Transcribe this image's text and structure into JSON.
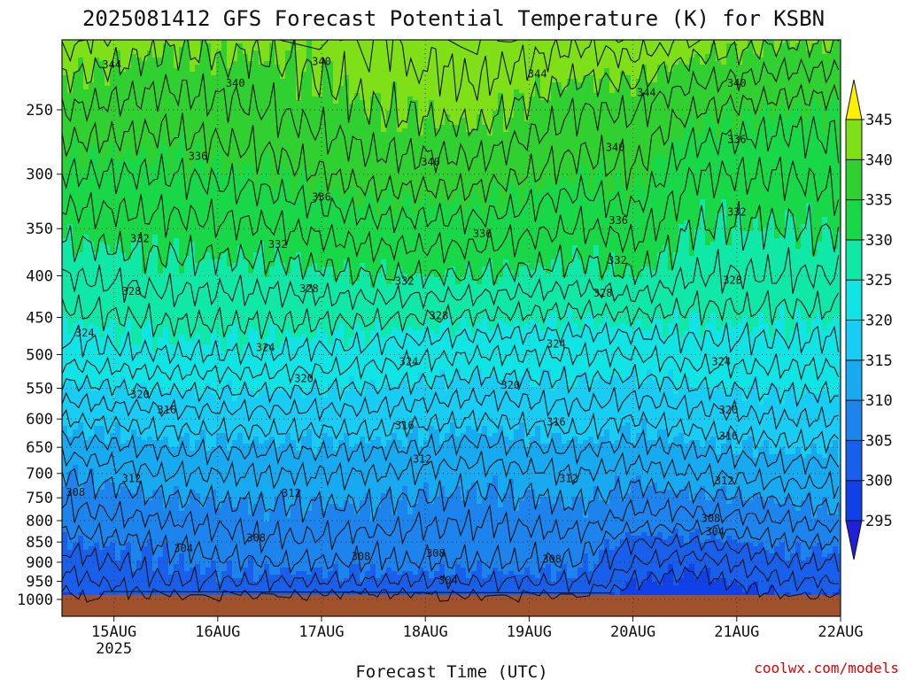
{
  "chart_data": {
    "type": "heatmap",
    "title": "2025081412 GFS Forecast Potential Temperature (K) for KSBN",
    "xlabel": "Forecast Time (UTC)",
    "ylabel": "",
    "credit": "coolwx.com/models",
    "x_ticks": [
      {
        "label": "15AUG",
        "sublabel": "2025",
        "day": 15
      },
      {
        "label": "16AUG",
        "sublabel": "",
        "day": 16
      },
      {
        "label": "17AUG",
        "sublabel": "",
        "day": 17
      },
      {
        "label": "18AUG",
        "sublabel": "",
        "day": 18
      },
      {
        "label": "19AUG",
        "sublabel": "",
        "day": 19
      },
      {
        "label": "20AUG",
        "sublabel": "",
        "day": 20
      },
      {
        "label": "21AUG",
        "sublabel": "",
        "day": 21
      },
      {
        "label": "22AUG",
        "sublabel": "",
        "day": 22
      }
    ],
    "xlim": [
      14.5,
      22.0
    ],
    "y_axis_scale": "log-pressure",
    "y_ticks_hpa": [
      250,
      300,
      350,
      400,
      450,
      500,
      550,
      600,
      650,
      700,
      750,
      800,
      850,
      900,
      950,
      1000
    ],
    "ylim_hpa": [
      1000,
      200
    ],
    "grid": true,
    "colorbar": {
      "levels": [
        295,
        300,
        305,
        310,
        315,
        320,
        325,
        330,
        335,
        340,
        345
      ],
      "colors": [
        "#2020d8",
        "#1040e8",
        "#1860ec",
        "#1c84ec",
        "#18aaf0",
        "#18ccf4",
        "#10e4e4",
        "#10e8a8",
        "#18d848",
        "#30d030",
        "#80e018",
        "#fff000"
      ],
      "extend": "both"
    },
    "surface_color": "#a0522d",
    "contour_interval": 2,
    "contour_levels": [
      300,
      302,
      304,
      306,
      308,
      310,
      312,
      314,
      316,
      318,
      320,
      322,
      324,
      326,
      328,
      330,
      332,
      334,
      336,
      338,
      340,
      342,
      344,
      346
    ],
    "theta_profiles": [
      {
        "time_day": 14.5,
        "pressure_hpa": [
          1000,
          950,
          900,
          850,
          800,
          700,
          600,
          500,
          400,
          300,
          250,
          200
        ],
        "theta_k": [
          299,
          301,
          303,
          305,
          307,
          310,
          316,
          323,
          328,
          334,
          338,
          343
        ]
      },
      {
        "time_day": 15.5,
        "pressure_hpa": [
          1000,
          950,
          900,
          850,
          800,
          700,
          600,
          500,
          400,
          300,
          250,
          200
        ],
        "theta_k": [
          302,
          304,
          305,
          306,
          308,
          312,
          317,
          324,
          329,
          334,
          337,
          341
        ]
      },
      {
        "time_day": 16.5,
        "pressure_hpa": [
          1000,
          950,
          900,
          850,
          800,
          700,
          600,
          500,
          400,
          300,
          250,
          200
        ],
        "theta_k": [
          302,
          304,
          306,
          308,
          309,
          312,
          317,
          324,
          329,
          335,
          338,
          341
        ]
      },
      {
        "time_day": 17.5,
        "pressure_hpa": [
          1000,
          950,
          900,
          850,
          800,
          700,
          600,
          500,
          400,
          300,
          250,
          200
        ],
        "theta_k": [
          301,
          304,
          306,
          307,
          309,
          312,
          317,
          323,
          330,
          337,
          340,
          342
        ]
      },
      {
        "time_day": 18.5,
        "pressure_hpa": [
          1000,
          950,
          900,
          850,
          800,
          700,
          600,
          500,
          400,
          300,
          250,
          200
        ],
        "theta_k": [
          302,
          304,
          306,
          307,
          308,
          311,
          316,
          322,
          330,
          337,
          341,
          344
        ]
      },
      {
        "time_day": 19.5,
        "pressure_hpa": [
          1000,
          950,
          900,
          850,
          800,
          700,
          600,
          500,
          400,
          300,
          250,
          200
        ],
        "theta_k": [
          302,
          304,
          306,
          307,
          309,
          312,
          317,
          322,
          329,
          335,
          338,
          343
        ]
      },
      {
        "time_day": 20.0,
        "pressure_hpa": [
          1000,
          950,
          900,
          850,
          800,
          700,
          600,
          500,
          400,
          300,
          250,
          200
        ],
        "theta_k": [
          298,
          300,
          302,
          304,
          307,
          311,
          316,
          322,
          330,
          336,
          338,
          344
        ]
      },
      {
        "time_day": 20.6,
        "pressure_hpa": [
          1000,
          950,
          900,
          850,
          800,
          700,
          600,
          500,
          400,
          300,
          250,
          200
        ],
        "theta_k": [
          297,
          299,
          301,
          304,
          307,
          312,
          317,
          323,
          328,
          332,
          336,
          342
        ]
      },
      {
        "time_day": 21.5,
        "pressure_hpa": [
          1000,
          950,
          900,
          850,
          800,
          700,
          600,
          500,
          400,
          300,
          250,
          200
        ],
        "theta_k": [
          300,
          302,
          304,
          306,
          308,
          313,
          318,
          323,
          328,
          332,
          335,
          341
        ]
      },
      {
        "time_day": 22.0,
        "pressure_hpa": [
          1000,
          950,
          900,
          850,
          800,
          700,
          600,
          500,
          400,
          300,
          250,
          200
        ],
        "theta_k": [
          299,
          302,
          304,
          306,
          309,
          313,
          318,
          323,
          328,
          333,
          335,
          341
        ]
      }
    ],
    "contour_labels": [
      {
        "text": "344",
        "time_day": 14.98,
        "pressure_hpa": 220
      },
      {
        "text": "340",
        "time_day": 16.17,
        "pressure_hpa": 232
      },
      {
        "text": "340",
        "time_day": 17.0,
        "pressure_hpa": 218
      },
      {
        "text": "344",
        "time_day": 19.08,
        "pressure_hpa": 226
      },
      {
        "text": "344",
        "time_day": 20.13,
        "pressure_hpa": 238
      },
      {
        "text": "340",
        "time_day": 21.0,
        "pressure_hpa": 232
      },
      {
        "text": "336",
        "time_day": 15.81,
        "pressure_hpa": 285
      },
      {
        "text": "340",
        "time_day": 18.05,
        "pressure_hpa": 290
      },
      {
        "text": "340",
        "time_day": 19.83,
        "pressure_hpa": 278
      },
      {
        "text": "336",
        "time_day": 21.0,
        "pressure_hpa": 272
      },
      {
        "text": "336",
        "time_day": 17.0,
        "pressure_hpa": 320
      },
      {
        "text": "336",
        "time_day": 19.86,
        "pressure_hpa": 342
      },
      {
        "text": "332",
        "time_day": 21.0,
        "pressure_hpa": 334
      },
      {
        "text": "332",
        "time_day": 15.25,
        "pressure_hpa": 360
      },
      {
        "text": "332",
        "time_day": 16.58,
        "pressure_hpa": 366
      },
      {
        "text": "336",
        "time_day": 18.55,
        "pressure_hpa": 355
      },
      {
        "text": "332",
        "time_day": 19.85,
        "pressure_hpa": 383
      },
      {
        "text": "328",
        "time_day": 15.17,
        "pressure_hpa": 418
      },
      {
        "text": "328",
        "time_day": 16.88,
        "pressure_hpa": 415
      },
      {
        "text": "332",
        "time_day": 17.8,
        "pressure_hpa": 406
      },
      {
        "text": "328",
        "time_day": 18.13,
        "pressure_hpa": 448
      },
      {
        "text": "328",
        "time_day": 19.71,
        "pressure_hpa": 420
      },
      {
        "text": "328",
        "time_day": 20.96,
        "pressure_hpa": 405
      },
      {
        "text": "324",
        "time_day": 14.72,
        "pressure_hpa": 470
      },
      {
        "text": "324",
        "time_day": 16.46,
        "pressure_hpa": 490
      },
      {
        "text": "324",
        "time_day": 17.84,
        "pressure_hpa": 510
      },
      {
        "text": "324",
        "time_day": 19.26,
        "pressure_hpa": 485
      },
      {
        "text": "324",
        "time_day": 20.85,
        "pressure_hpa": 510
      },
      {
        "text": "320",
        "time_day": 16.83,
        "pressure_hpa": 535
      },
      {
        "text": "320",
        "time_day": 15.25,
        "pressure_hpa": 560
      },
      {
        "text": "320",
        "time_day": 18.82,
        "pressure_hpa": 545
      },
      {
        "text": "320",
        "time_day": 20.92,
        "pressure_hpa": 585
      },
      {
        "text": "316",
        "time_day": 15.51,
        "pressure_hpa": 585
      },
      {
        "text": "316",
        "time_day": 17.8,
        "pressure_hpa": 611
      },
      {
        "text": "316",
        "time_day": 19.26,
        "pressure_hpa": 605
      },
      {
        "text": "316",
        "time_day": 20.92,
        "pressure_hpa": 630
      },
      {
        "text": "312",
        "time_day": 17.97,
        "pressure_hpa": 672
      },
      {
        "text": "312",
        "time_day": 15.17,
        "pressure_hpa": 710
      },
      {
        "text": "312",
        "time_day": 19.38,
        "pressure_hpa": 710
      },
      {
        "text": "312",
        "time_day": 20.88,
        "pressure_hpa": 715
      },
      {
        "text": "312",
        "time_day": 16.71,
        "pressure_hpa": 740
      },
      {
        "text": "308",
        "time_day": 14.63,
        "pressure_hpa": 738
      },
      {
        "text": "308",
        "time_day": 20.75,
        "pressure_hpa": 795
      },
      {
        "text": "304",
        "time_day": 20.79,
        "pressure_hpa": 826
      },
      {
        "text": "308",
        "time_day": 16.37,
        "pressure_hpa": 840
      },
      {
        "text": "304",
        "time_day": 15.67,
        "pressure_hpa": 866
      },
      {
        "text": "308",
        "time_day": 17.38,
        "pressure_hpa": 885
      },
      {
        "text": "308",
        "time_day": 18.1,
        "pressure_hpa": 878
      },
      {
        "text": "308",
        "time_day": 19.22,
        "pressure_hpa": 892
      },
      {
        "text": "304",
        "time_day": 18.22,
        "pressure_hpa": 948
      }
    ]
  }
}
